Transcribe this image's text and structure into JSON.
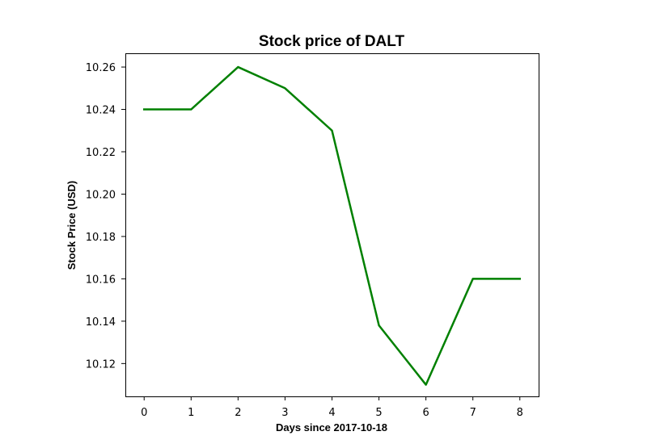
{
  "chart_data": {
    "type": "line",
    "title": "Stock price of DALT",
    "xlabel": "Days since 2017-10-18",
    "ylabel": "Stock Price (USD)",
    "x": [
      0,
      1,
      2,
      3,
      4,
      5,
      6,
      7,
      8
    ],
    "series": [
      {
        "name": "DALT",
        "color": "#008000",
        "values": [
          10.24,
          10.24,
          10.26,
          10.25,
          10.23,
          10.138,
          10.11,
          10.16,
          10.16
        ]
      }
    ],
    "xlim": [
      -0.4,
      8.4
    ],
    "ylim": [
      10.1045,
      10.2665
    ],
    "xticks": [
      0,
      1,
      2,
      3,
      4,
      5,
      6,
      7,
      8
    ],
    "xtick_labels": [
      "0",
      "1",
      "2",
      "3",
      "4",
      "5",
      "6",
      "7",
      "8"
    ],
    "yticks": [
      10.12,
      10.14,
      10.16,
      10.18,
      10.2,
      10.22,
      10.24,
      10.26
    ],
    "ytick_labels": [
      "10.12",
      "10.14",
      "10.16",
      "10.18",
      "10.20",
      "10.22",
      "10.24",
      "10.26"
    ],
    "grid": false,
    "legend": "none"
  }
}
